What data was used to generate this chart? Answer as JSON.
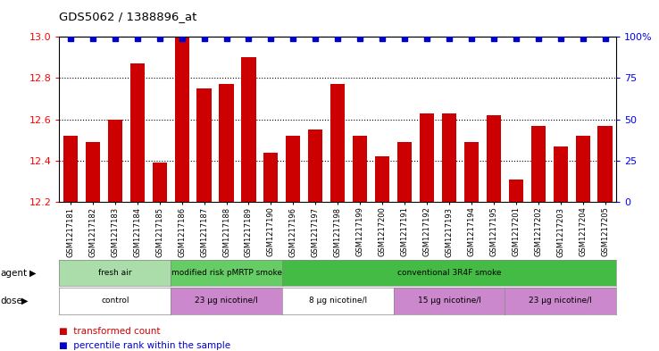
{
  "title": "GDS5062 / 1388896_at",
  "samples": [
    "GSM1217181",
    "GSM1217182",
    "GSM1217183",
    "GSM1217184",
    "GSM1217185",
    "GSM1217186",
    "GSM1217187",
    "GSM1217188",
    "GSM1217189",
    "GSM1217190",
    "GSM1217196",
    "GSM1217197",
    "GSM1217198",
    "GSM1217199",
    "GSM1217200",
    "GSM1217191",
    "GSM1217192",
    "GSM1217193",
    "GSM1217194",
    "GSM1217195",
    "GSM1217201",
    "GSM1217202",
    "GSM1217203",
    "GSM1217204",
    "GSM1217205"
  ],
  "bar_values": [
    12.52,
    12.49,
    12.6,
    12.87,
    12.39,
    13.0,
    12.75,
    12.77,
    12.9,
    12.44,
    12.52,
    12.55,
    12.77,
    12.52,
    12.42,
    12.49,
    12.63,
    12.63,
    12.49,
    12.62,
    12.31,
    12.57,
    12.47,
    12.52,
    12.57
  ],
  "percentile_values": [
    100,
    100,
    100,
    100,
    100,
    100,
    100,
    100,
    100,
    100,
    100,
    100,
    100,
    100,
    100,
    100,
    100,
    100,
    100,
    100,
    100,
    100,
    100,
    100,
    100
  ],
  "bar_color": "#cc0000",
  "percentile_color": "#0000cc",
  "ylim_left": [
    12.2,
    13.0
  ],
  "ylim_right": [
    0,
    100
  ],
  "yticks_left": [
    12.2,
    12.4,
    12.6,
    12.8,
    13.0
  ],
  "yticks_right": [
    0,
    25,
    50,
    75,
    100
  ],
  "ytick_labels_right": [
    "0",
    "25",
    "50",
    "75",
    "100%"
  ],
  "agent_groups": [
    {
      "label": "fresh air",
      "start": 0,
      "end": 5,
      "color": "#aaddaa"
    },
    {
      "label": "modified risk pMRTP smoke",
      "start": 5,
      "end": 10,
      "color": "#66cc66"
    },
    {
      "label": "conventional 3R4F smoke",
      "start": 10,
      "end": 25,
      "color": "#44bb44"
    }
  ],
  "dose_groups": [
    {
      "label": "control",
      "start": 0,
      "end": 5,
      "color": "#ffffff"
    },
    {
      "label": "23 μg nicotine/l",
      "start": 5,
      "end": 10,
      "color": "#cc88cc"
    },
    {
      "label": "8 μg nicotine/l",
      "start": 10,
      "end": 15,
      "color": "#ffffff"
    },
    {
      "label": "15 μg nicotine/l",
      "start": 15,
      "end": 20,
      "color": "#cc88cc"
    },
    {
      "label": "23 μg nicotine/l",
      "start": 20,
      "end": 25,
      "color": "#cc88cc"
    }
  ],
  "agent_label": "agent",
  "dose_label": "dose",
  "legend_bar_label": "transformed count",
  "legend_pct_label": "percentile rank within the sample"
}
